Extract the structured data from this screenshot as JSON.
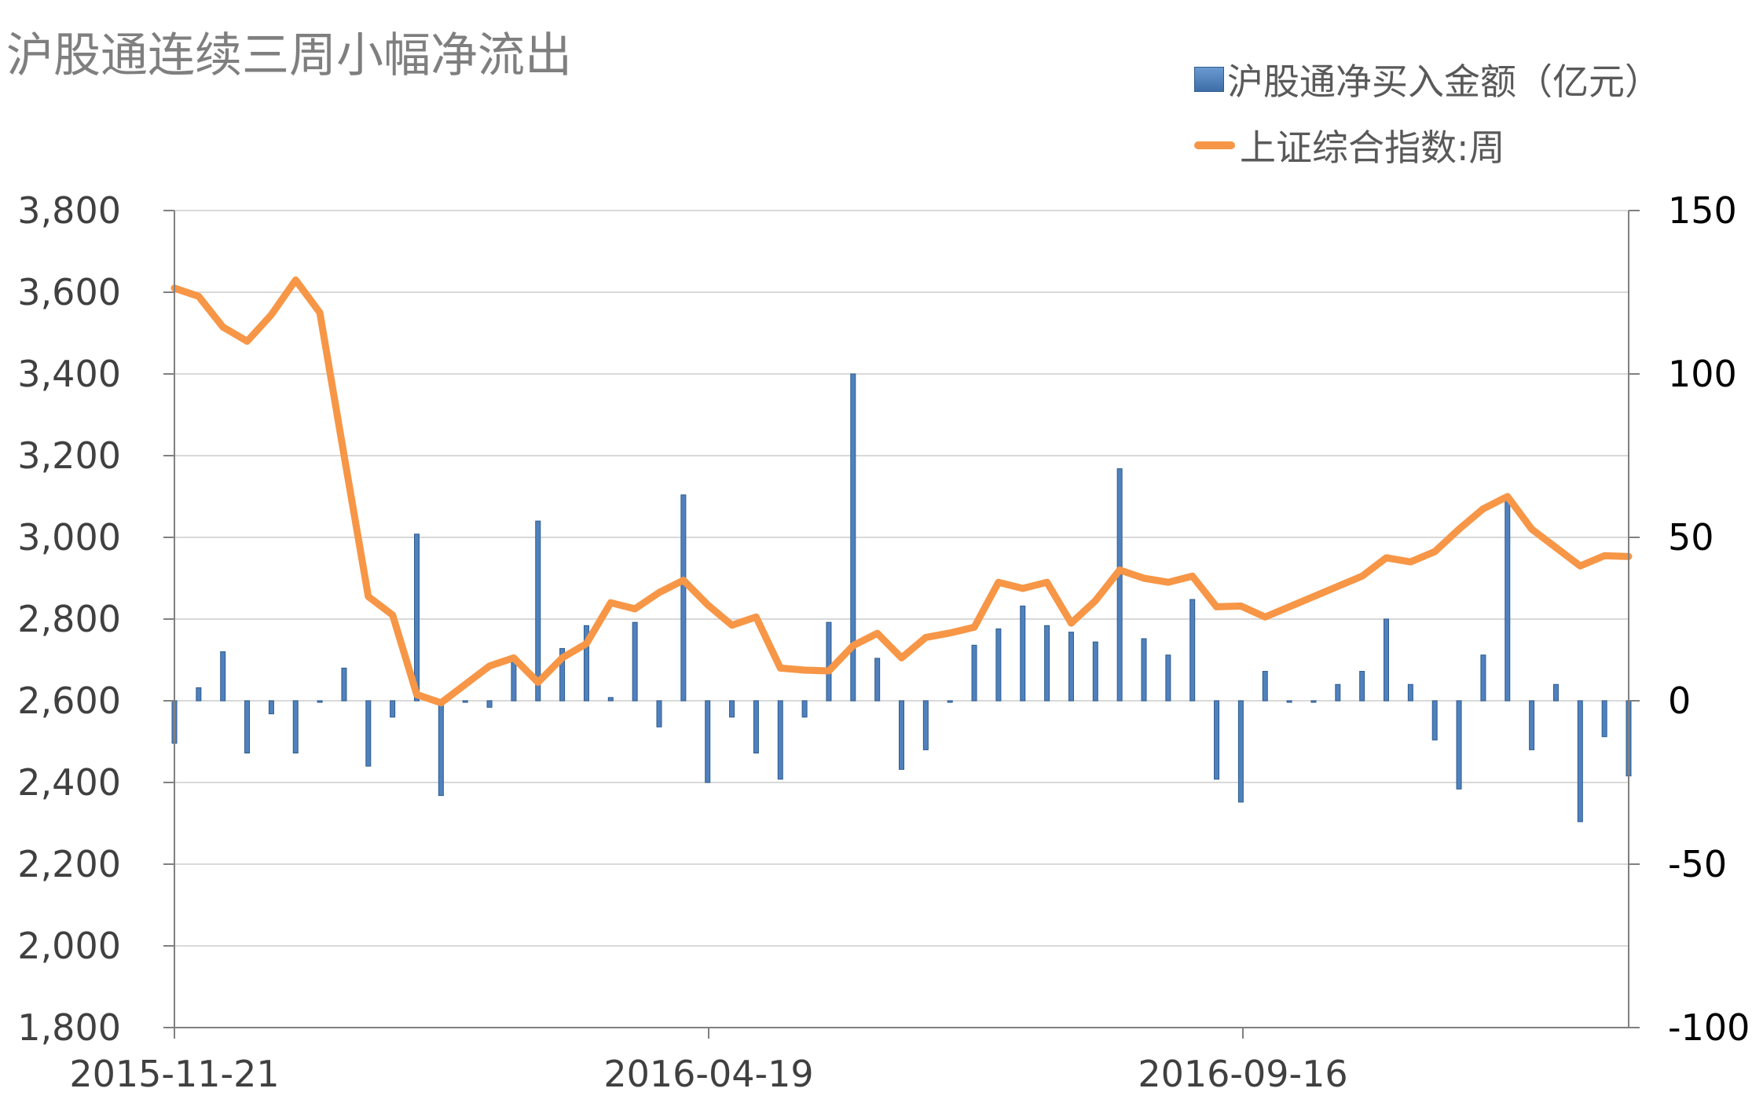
{
  "chart_data": {
    "type": "bar+line",
    "title": "沪股通连续三周小幅净流出",
    "legend": [
      "沪股通净买入金额（亿元）",
      "上证综合指数:周"
    ],
    "left_axis": {
      "ylim": [
        1800,
        3800
      ],
      "ticks": [
        "3,800",
        "3,600",
        "3,400",
        "3,200",
        "3,000",
        "2,800",
        "2,600",
        "2,400",
        "2,200",
        "2,000",
        "1,800"
      ]
    },
    "right_axis": {
      "ylim": [
        -100,
        150
      ],
      "ticks": [
        "150",
        "100",
        "50",
        "0",
        "-50",
        "-100"
      ]
    },
    "x_tick_labels": [
      "2015-11-21",
      "2016-04-19",
      "2016-09-16"
    ],
    "grid": true,
    "series": [
      {
        "name": "沪股通净买入金额（亿元）",
        "kind": "bar",
        "axis": "right",
        "color": "#4f81bd",
        "values": [
          -13,
          4,
          15,
          -16,
          -4,
          -16,
          0,
          10,
          -20,
          -5,
          51,
          -29,
          0,
          -2,
          12,
          55,
          16,
          23,
          1,
          24,
          -8,
          63,
          -25,
          -5,
          -16,
          -24,
          -5,
          24,
          100,
          13,
          -21,
          -15,
          0,
          17,
          22,
          29,
          23,
          21,
          18,
          71,
          19,
          14,
          31,
          -24,
          -31,
          9,
          0,
          0,
          5,
          9,
          25,
          5,
          -12,
          -27,
          14,
          62,
          -15,
          5,
          -37,
          -11,
          -23
        ]
      },
      {
        "name": "上证综合指数:周",
        "kind": "line",
        "axis": "left",
        "color": "#f79646",
        "values": [
          3610,
          3590,
          3515,
          3480,
          3545,
          3630,
          3550,
          3200,
          2855,
          2810,
          2615,
          2595,
          2640,
          2685,
          2705,
          2645,
          2705,
          2740,
          2840,
          2825,
          2865,
          2895,
          2835,
          2785,
          2805,
          2680,
          2675,
          2673,
          2735,
          2765,
          2705,
          2755,
          2766,
          2780,
          2890,
          2875,
          2890,
          2790,
          2845,
          2920,
          2900,
          2890,
          2905,
          2830,
          2832,
          2805,
          2830,
          2855,
          2880,
          2905,
          2950,
          2940,
          2965,
          3020,
          3070,
          3100,
          3020,
          2975,
          2930,
          2955,
          2953
        ]
      }
    ]
  }
}
